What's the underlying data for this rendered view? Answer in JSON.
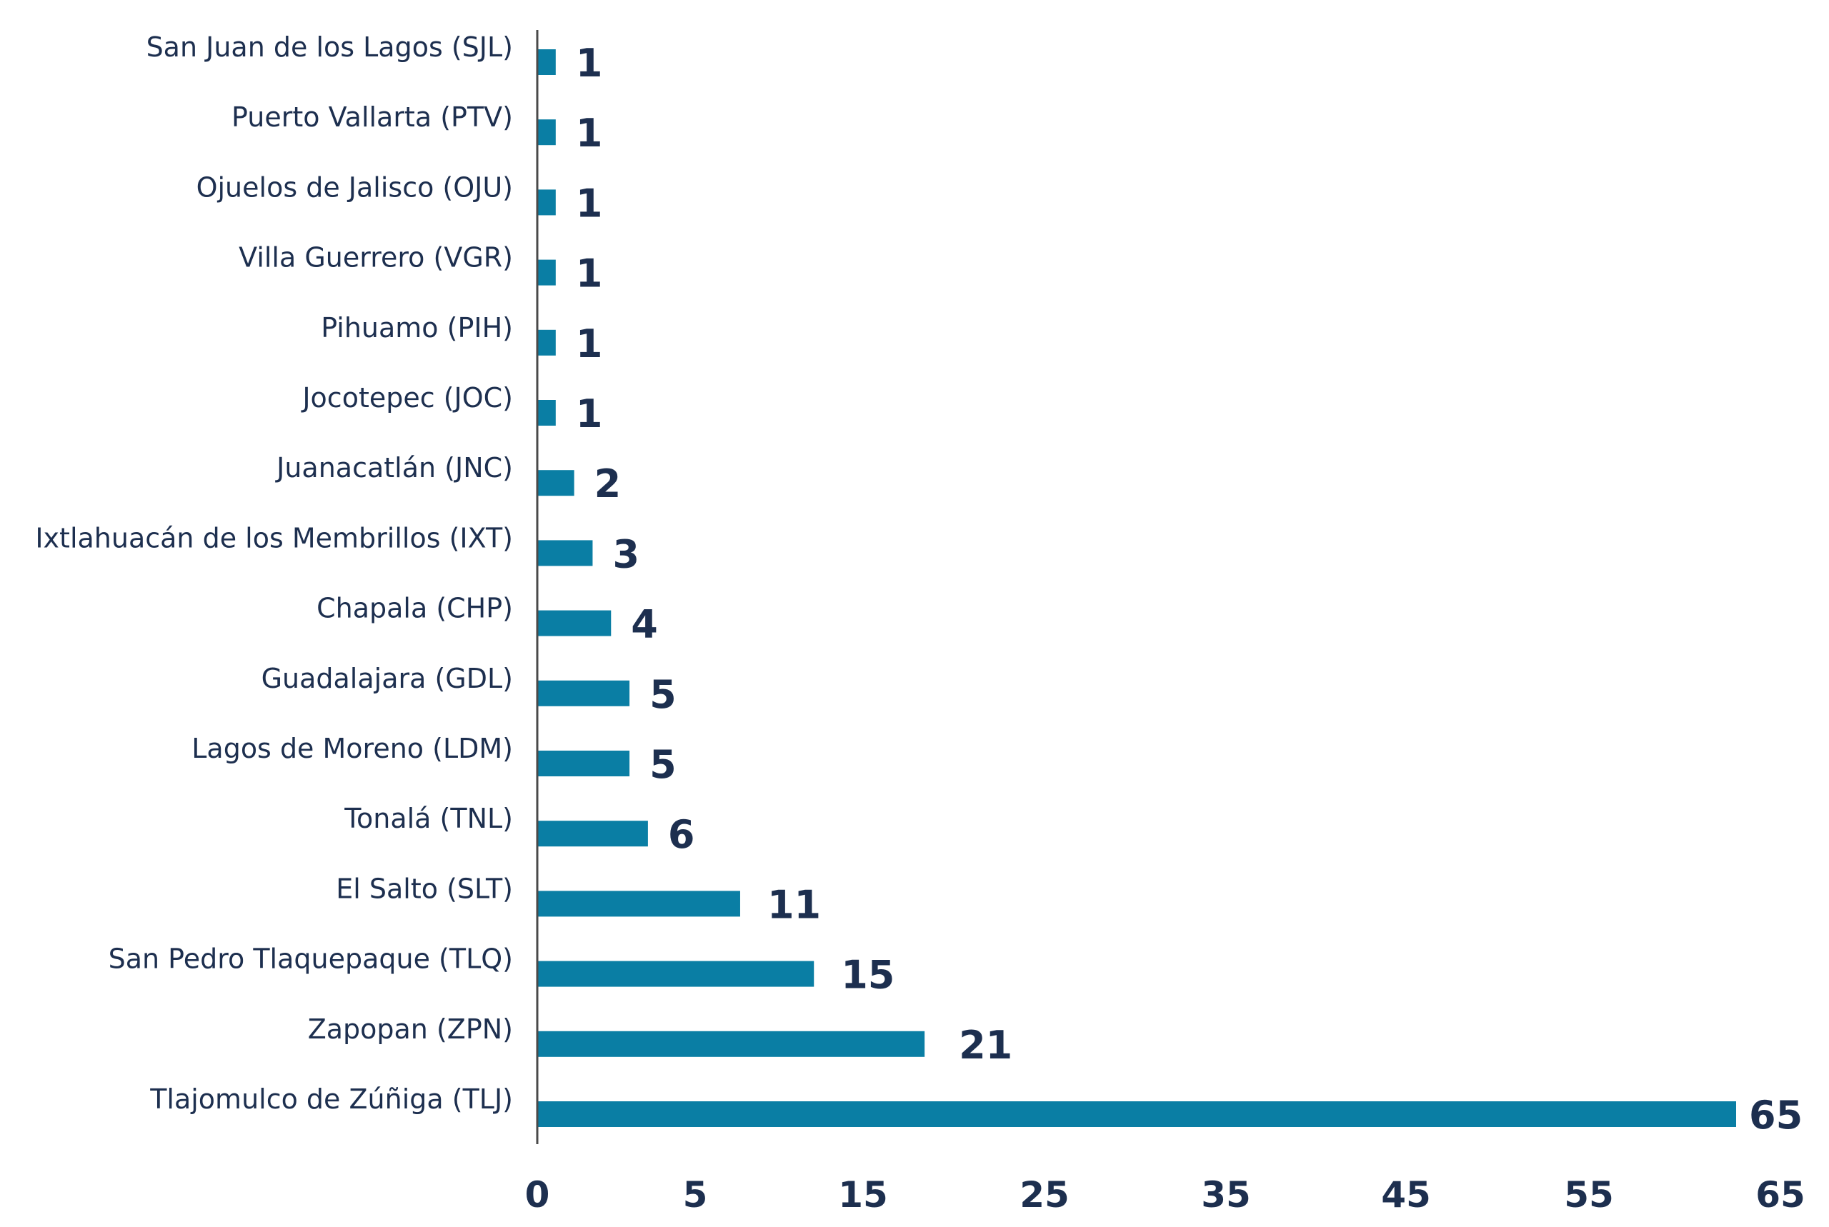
{
  "chart_data": {
    "type": "bar",
    "orientation": "horizontal",
    "categories": [
      "San Juan de los Lagos (SJL)",
      "Puerto Vallarta (PTV)",
      "Ojuelos de Jalisco (OJU)",
      "Villa Guerrero (VGR)",
      "Pihuamo (PIH)",
      "Jocotepec (JOC)",
      "Juanacatlán (JNC)",
      "Ixtlahuacán de los Membrillos (IXT)",
      "Chapala (CHP)",
      "Guadalajara (GDL)",
      "Lagos de Moreno (LDM)",
      "Tonalá (TNL)",
      "El Salto (SLT)",
      "San Pedro Tlaquepaque (TLQ)",
      "Zapopan (ZPN)",
      "Tlajomulco de Zúñiga (TLJ)"
    ],
    "values": [
      1,
      1,
      1,
      1,
      1,
      1,
      2,
      3,
      4,
      5,
      5,
      6,
      11,
      15,
      21,
      65
    ],
    "value_labels": [
      "1",
      "1",
      "1",
      "1",
      "1",
      "1",
      "2",
      "3",
      "4",
      "5",
      "5",
      "6",
      "11",
      "15",
      "21",
      "65"
    ],
    "x_ticks": [
      0,
      5,
      15,
      25,
      35,
      45,
      55,
      65
    ],
    "x_tick_labels": [
      "0",
      "5",
      "15",
      "25",
      "35",
      "45",
      "55",
      "65"
    ],
    "xlim": [
      0,
      65
    ],
    "grid": false,
    "legend": "none",
    "title": "",
    "xlabel": "",
    "ylabel": ""
  },
  "colors": {
    "bar": "#0a7ea4",
    "text": "#1d2f4f",
    "axis": "#4a4a4a",
    "background": "#ffffff"
  }
}
